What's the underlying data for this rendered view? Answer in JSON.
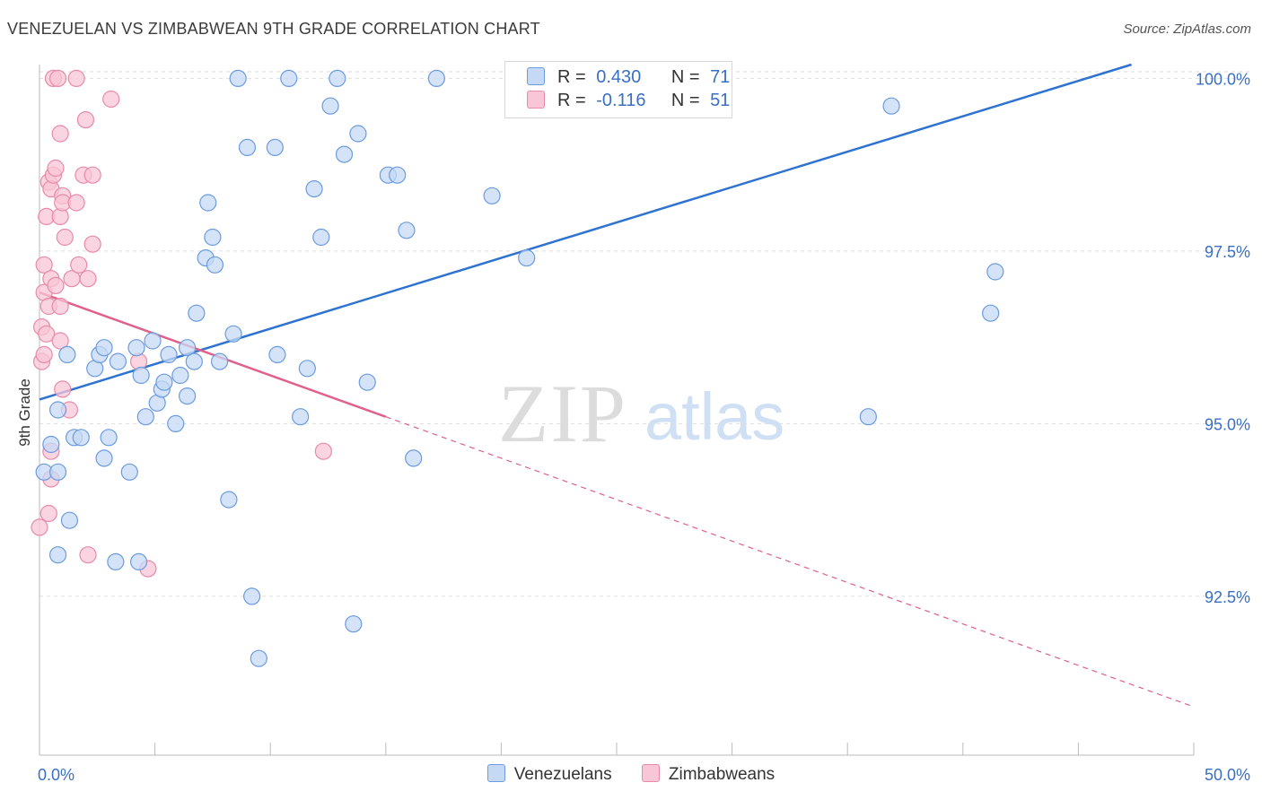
{
  "title": "VENEZUELAN VS ZIMBABWEAN 9TH GRADE CORRELATION CHART",
  "source": "Source: ZipAtlas.com",
  "watermark": {
    "zip": "ZIP",
    "atlas": "atlas"
  },
  "colors": {
    "blue_fill": "#c5d9f5",
    "blue_stroke": "#6b9be0",
    "blue_line": "#2f73d0",
    "pink_fill": "#f8c6d6",
    "pink_stroke": "#e88aa8",
    "pink_line": "#e0608a",
    "axis_text": "#3a6fc4",
    "grid": "#dddddd"
  },
  "legend": {
    "r_label": "R =",
    "n_label": "N =",
    "venezuelans": {
      "r": "0.430",
      "n": "71"
    },
    "zimbabweans": {
      "r": "-0.116",
      "n": "51"
    }
  },
  "chart_data": {
    "type": "scatter",
    "title": "VENEZUELAN VS ZIMBABWEAN 9TH GRADE CORRELATION CHART",
    "xlabel": "",
    "ylabel": "9th Grade",
    "xlim": [
      0,
      50
    ],
    "ylim": [
      90.2,
      100.2
    ],
    "x_tick_labels": [
      "0.0%",
      "50.0%"
    ],
    "y_ticks": [
      92.5,
      95.0,
      97.5,
      100.0
    ],
    "y_tick_labels": [
      "92.5%",
      "95.0%",
      "97.5%",
      "100.0%"
    ],
    "legend_position": "bottom",
    "series": [
      {
        "name": "Venezuelans",
        "trend": {
          "x": [
            0,
            47.3
          ],
          "y": [
            95.35,
            100.2
          ]
        },
        "points": [
          [
            0.2,
            94.3
          ],
          [
            0.8,
            95.2
          ],
          [
            1.2,
            96.0
          ],
          [
            1.5,
            94.8
          ],
          [
            0.8,
            94.3
          ],
          [
            0.5,
            94.7
          ],
          [
            1.3,
            93.6
          ],
          [
            0.8,
            93.1
          ],
          [
            1.8,
            94.8
          ],
          [
            2.4,
            95.8
          ],
          [
            2.6,
            96.0
          ],
          [
            2.8,
            96.1
          ],
          [
            2.8,
            94.5
          ],
          [
            3.0,
            94.8
          ],
          [
            3.3,
            93.0
          ],
          [
            3.4,
            95.9
          ],
          [
            3.9,
            94.3
          ],
          [
            4.2,
            96.1
          ],
          [
            4.3,
            93.0
          ],
          [
            4.4,
            95.7
          ],
          [
            4.6,
            95.1
          ],
          [
            4.9,
            96.2
          ],
          [
            5.1,
            95.3
          ],
          [
            5.3,
            95.5
          ],
          [
            5.4,
            95.6
          ],
          [
            5.6,
            96.0
          ],
          [
            5.9,
            95.0
          ],
          [
            6.1,
            95.7
          ],
          [
            6.4,
            95.4
          ],
          [
            6.4,
            96.1
          ],
          [
            6.7,
            95.9
          ],
          [
            6.8,
            96.6
          ],
          [
            7.2,
            97.4
          ],
          [
            7.3,
            98.2
          ],
          [
            7.5,
            97.7
          ],
          [
            7.6,
            97.3
          ],
          [
            7.8,
            95.9
          ],
          [
            8.2,
            93.9
          ],
          [
            8.4,
            96.3
          ],
          [
            8.6,
            100.0
          ],
          [
            9.0,
            99.0
          ],
          [
            9.2,
            92.5
          ],
          [
            9.5,
            91.6
          ],
          [
            10.2,
            99.0
          ],
          [
            10.3,
            96.0
          ],
          [
            10.8,
            100.0
          ],
          [
            11.3,
            95.1
          ],
          [
            11.6,
            95.8
          ],
          [
            11.9,
            98.4
          ],
          [
            12.2,
            97.7
          ],
          [
            12.6,
            99.6
          ],
          [
            12.9,
            100.0
          ],
          [
            13.2,
            98.9
          ],
          [
            13.6,
            92.1
          ],
          [
            13.8,
            99.2
          ],
          [
            14.2,
            95.6
          ],
          [
            15.1,
            98.6
          ],
          [
            15.5,
            98.6
          ],
          [
            15.9,
            97.8
          ],
          [
            16.2,
            94.5
          ],
          [
            17.2,
            100.0
          ],
          [
            19.6,
            98.3
          ],
          [
            21.1,
            97.4
          ],
          [
            35.9,
            95.1
          ],
          [
            36.9,
            99.6
          ],
          [
            41.2,
            96.6
          ],
          [
            41.4,
            97.2
          ]
        ]
      },
      {
        "name": "Zimbabweans",
        "trend": {
          "x": [
            0,
            15.0
          ],
          "y": [
            96.9,
            95.1
          ]
        },
        "trend_extended": {
          "x": [
            15.0,
            50.0
          ],
          "y": [
            95.1,
            90.9
          ]
        },
        "points": [
          [
            0.0,
            93.5
          ],
          [
            0.1,
            95.9
          ],
          [
            0.1,
            96.4
          ],
          [
            0.2,
            96.0
          ],
          [
            0.2,
            97.3
          ],
          [
            0.2,
            96.9
          ],
          [
            0.3,
            96.3
          ],
          [
            0.3,
            98.0
          ],
          [
            0.4,
            96.7
          ],
          [
            0.4,
            98.5
          ],
          [
            0.4,
            93.7
          ],
          [
            0.5,
            94.2
          ],
          [
            0.5,
            94.6
          ],
          [
            0.5,
            98.4
          ],
          [
            0.5,
            97.1
          ],
          [
            0.6,
            98.6
          ],
          [
            0.6,
            100.0
          ],
          [
            0.7,
            97.0
          ],
          [
            0.7,
            98.7
          ],
          [
            0.8,
            100.0
          ],
          [
            0.9,
            96.2
          ],
          [
            0.9,
            96.7
          ],
          [
            0.9,
            98.0
          ],
          [
            0.9,
            99.2
          ],
          [
            1.0,
            95.5
          ],
          [
            1.0,
            98.3
          ],
          [
            1.0,
            98.2
          ],
          [
            1.1,
            97.7
          ],
          [
            1.3,
            95.2
          ],
          [
            1.4,
            97.1
          ],
          [
            1.6,
            100.0
          ],
          [
            1.6,
            98.2
          ],
          [
            1.7,
            97.3
          ],
          [
            1.9,
            98.6
          ],
          [
            2.0,
            99.4
          ],
          [
            2.1,
            97.1
          ],
          [
            2.1,
            93.1
          ],
          [
            2.3,
            98.6
          ],
          [
            2.3,
            97.6
          ],
          [
            3.1,
            99.7
          ],
          [
            4.3,
            95.9
          ],
          [
            4.7,
            92.9
          ],
          [
            12.3,
            94.6
          ]
        ]
      }
    ]
  }
}
